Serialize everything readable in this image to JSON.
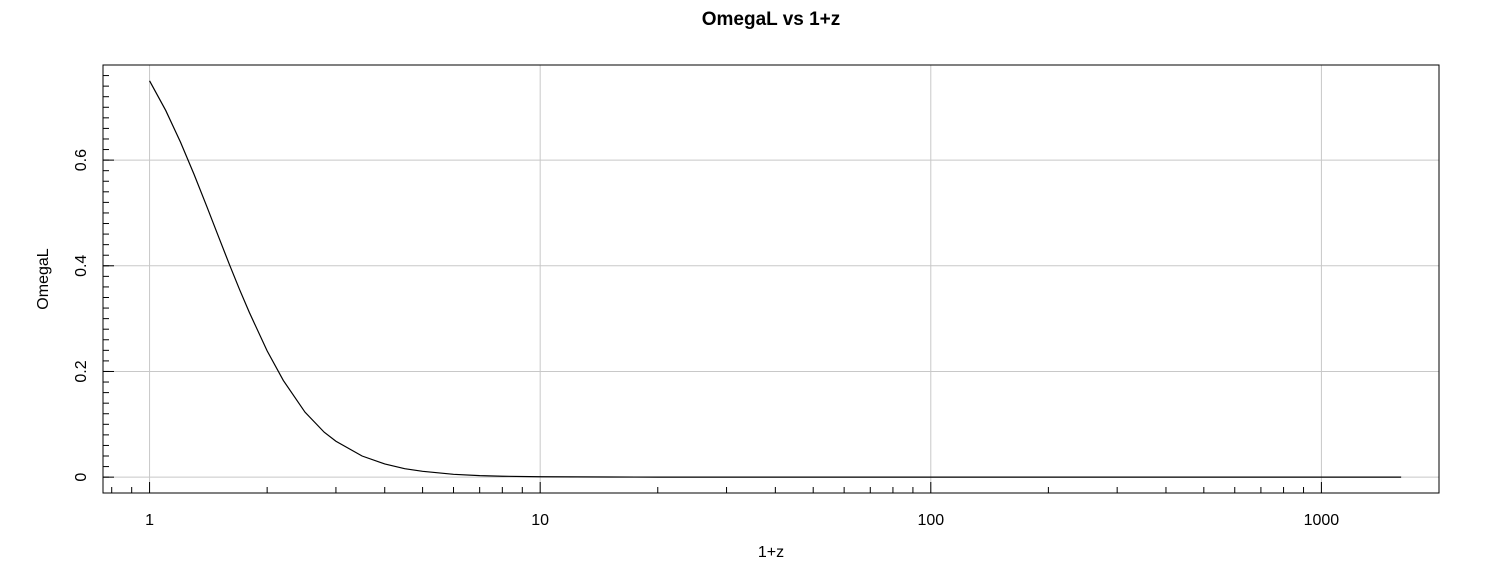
{
  "chart_data": {
    "type": "line",
    "title": "OmegaL vs 1+z",
    "xlabel": "1+z",
    "ylabel": "OmegaL",
    "x_scale": "log",
    "xlim": [
      0.76,
      2000
    ],
    "ylim": [
      -0.03,
      0.78
    ],
    "grid": true,
    "legend": "none",
    "x_ticks": [
      1,
      10,
      100,
      1000
    ],
    "x_tick_labels": [
      "1",
      "10",
      "100",
      "1000"
    ],
    "y_ticks": [
      0,
      0.2,
      0.4,
      0.6
    ],
    "y_tick_labels": [
      "0",
      "0.2",
      "0.4",
      "0.6"
    ],
    "line_color": "#000000",
    "grid_color": "#c8c8c8",
    "series": [
      {
        "x": [
          1,
          1.1,
          1.2,
          1.3,
          1.4,
          1.5,
          1.6,
          1.7,
          1.8,
          2.0,
          2.2,
          2.5,
          2.8,
          3.0,
          3.5,
          4.0,
          4.5,
          5.0,
          6.0,
          7.0,
          8.0,
          10,
          15,
          20,
          30,
          50,
          100,
          200,
          500,
          1000,
          1600
        ],
        "y": [
          0.75,
          0.694,
          0.634,
          0.573,
          0.513,
          0.456,
          0.403,
          0.355,
          0.312,
          0.239,
          0.183,
          0.123,
          0.085,
          0.068,
          0.04,
          0.025,
          0.016,
          0.011,
          0.0054,
          0.0029,
          0.0017,
          0.0008,
          0.00022,
          9e-05,
          3e-05,
          0,
          0,
          0,
          0,
          0,
          0
        ]
      }
    ]
  }
}
